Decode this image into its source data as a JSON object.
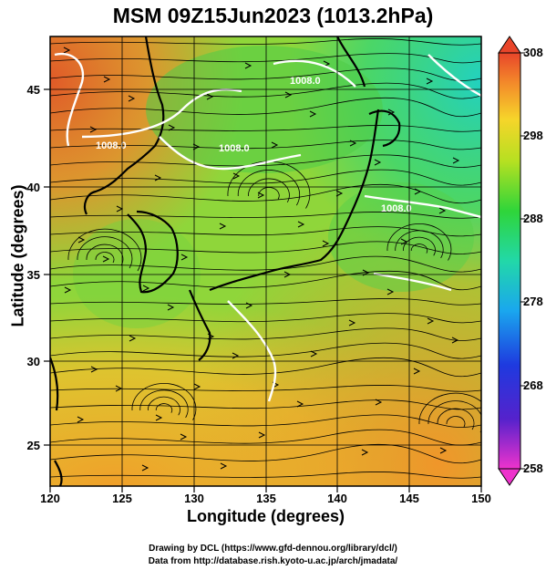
{
  "title": "MSM 09Z15Jun2023 (1013.2hPa)",
  "xlabel": "Longitude (degrees)",
  "ylabel": "Latitude  (degrees)",
  "x_ticks": [
    "120",
    "125",
    "130",
    "135",
    "140",
    "145",
    "150"
  ],
  "y_ticks": [
    "25",
    "30",
    "35",
    "40",
    "45"
  ],
  "colorbar_ticks": [
    "308",
    "298",
    "288",
    "278",
    "268",
    "258"
  ],
  "contour_labels": [
    "1008.0",
    "1008.0",
    "1008.0",
    "1008.0"
  ],
  "credit_line1": "Drawing by DCL (https://www.gfd-dennou.org/library/dcl/)",
  "credit_line2": "Data from http://database.rish.kyoto-u.ac.jp/arch/jmadata/",
  "map": {
    "lon_range": [
      120,
      150
    ],
    "lat_range": [
      22.5,
      47.5
    ],
    "colorbar_range": [
      258,
      308
    ],
    "variable": "temperature (K) with surface wind streamlines and 1008 hPa isobar contours"
  },
  "colors": {
    "warm": "#e8602a",
    "mid": "#3ecf40",
    "cool": "#2bd4b4",
    "contour": "#ffffff",
    "coast": "#000000"
  }
}
